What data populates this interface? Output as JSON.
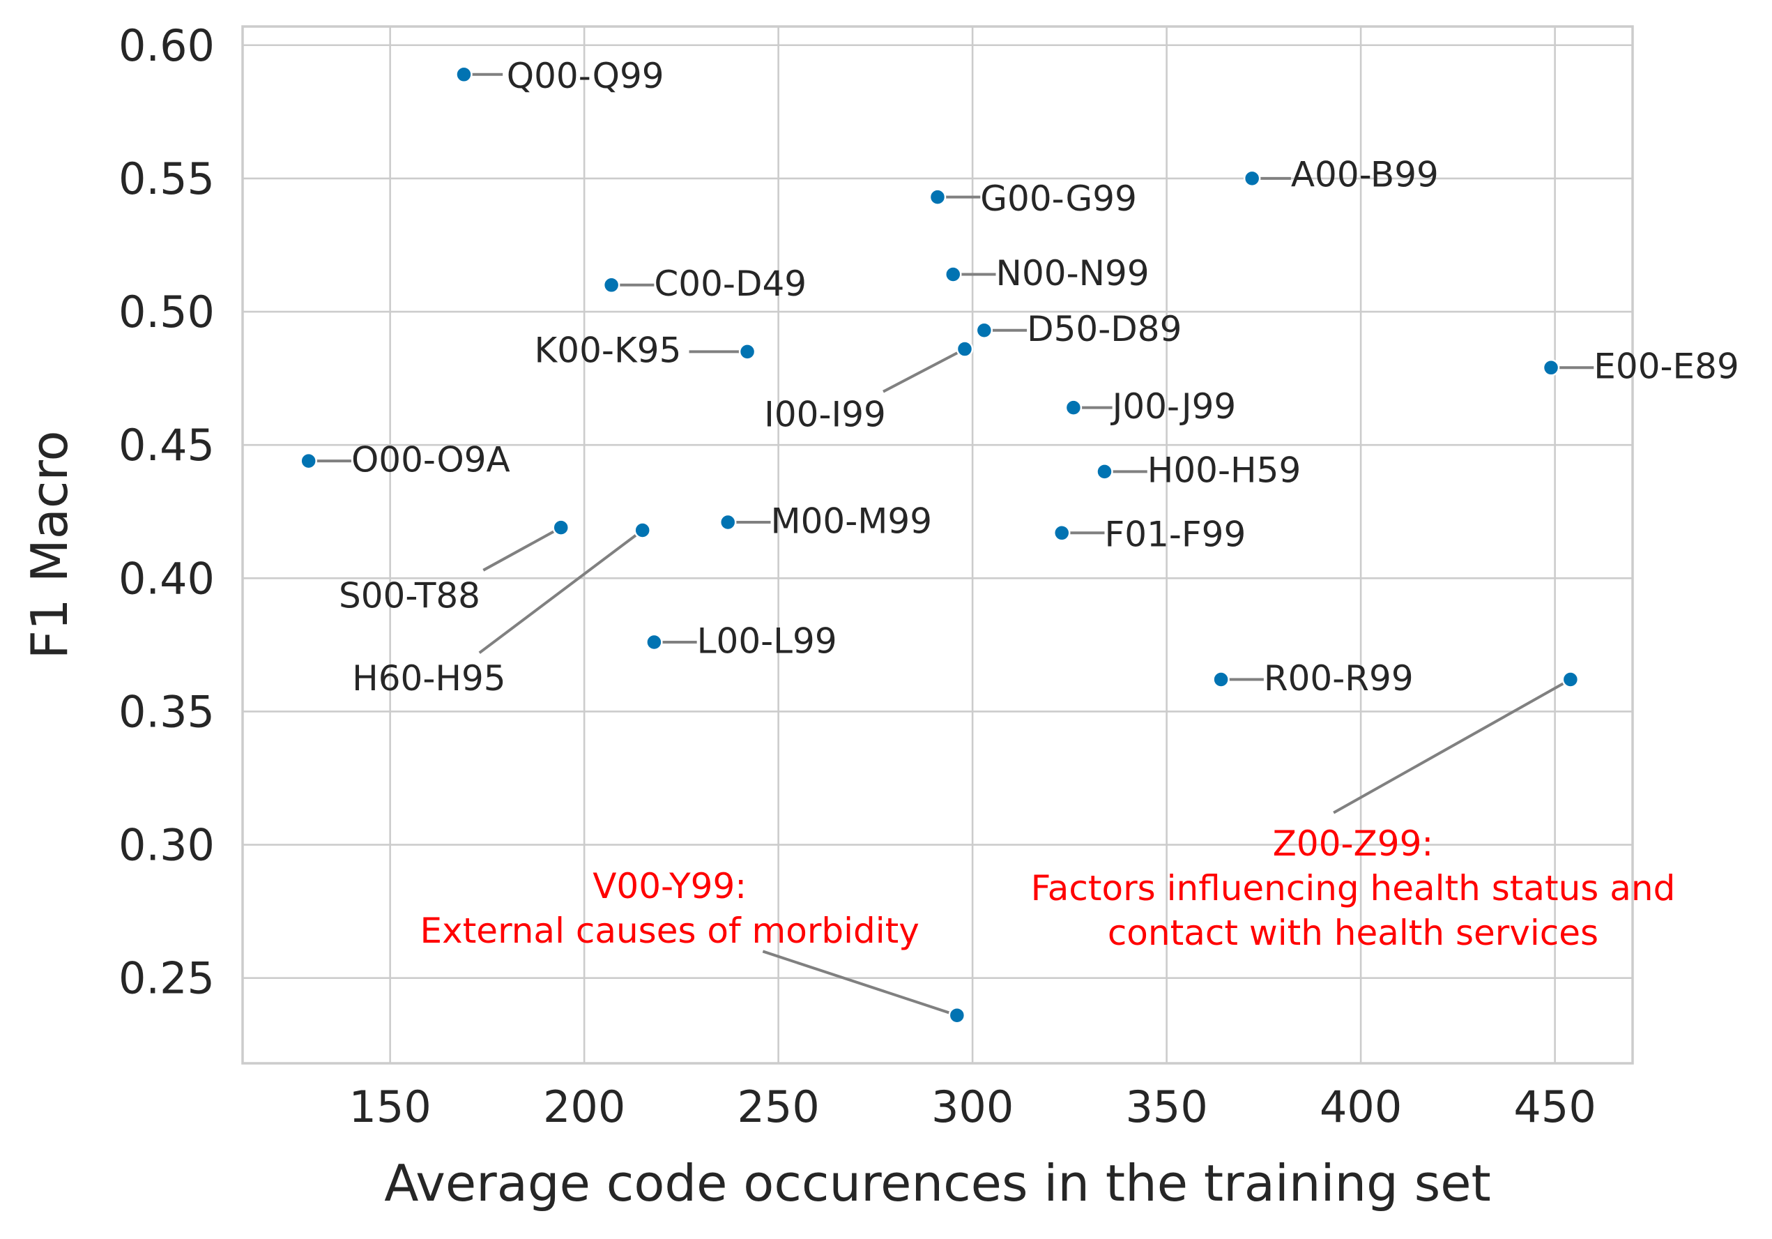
{
  "chart_data": {
    "type": "scatter",
    "xlabel": "Average code occurences in the training set",
    "ylabel": "F1 Macro",
    "xlim": [
      112,
      470
    ],
    "ylim": [
      0.218,
      0.607
    ],
    "xticks": [
      150,
      200,
      250,
      300,
      350,
      400,
      450
    ],
    "yticks": [
      0.25,
      0.3,
      0.35,
      0.4,
      0.45,
      0.5,
      0.55,
      0.6
    ],
    "xtick_labels": [
      "150",
      "200",
      "250",
      "300",
      "350",
      "400",
      "450"
    ],
    "ytick_labels": [
      "0.25",
      "0.30",
      "0.35",
      "0.40",
      "0.45",
      "0.50",
      "0.55",
      "0.60"
    ],
    "grid": true,
    "legend": "none",
    "point_color": "#0173b2",
    "highlight_color": "#ff0000",
    "points": [
      {
        "label": "Q00-Q99",
        "x": 169,
        "y": 0.589,
        "lx": 180,
        "ly": 0.584,
        "anchor": "start",
        "leader_x": 179,
        "leader_y": 0.589
      },
      {
        "label": "A00-B99",
        "x": 372,
        "y": 0.55,
        "lx": 382,
        "ly": 0.547,
        "anchor": "start",
        "leader_x": 382,
        "leader_y": 0.55
      },
      {
        "label": "G00-G99",
        "x": 291,
        "y": 0.543,
        "lx": 302,
        "ly": 0.538,
        "anchor": "start",
        "leader_x": 302,
        "leader_y": 0.543
      },
      {
        "label": "C00-D49",
        "x": 207,
        "y": 0.51,
        "lx": 218,
        "ly": 0.506,
        "anchor": "start",
        "leader_x": 218,
        "leader_y": 0.51
      },
      {
        "label": "N00-N99",
        "x": 295,
        "y": 0.514,
        "lx": 306,
        "ly": 0.51,
        "anchor": "start",
        "leader_x": 306,
        "leader_y": 0.514
      },
      {
        "label": "D50-D89",
        "x": 303,
        "y": 0.493,
        "lx": 314,
        "ly": 0.489,
        "anchor": "start",
        "leader_x": 314,
        "leader_y": 0.493
      },
      {
        "label": "K00-K95",
        "x": 242,
        "y": 0.485,
        "lx": 225,
        "ly": 0.481,
        "anchor": "end",
        "leader_x": 227,
        "leader_y": 0.485
      },
      {
        "label": "E00-E89",
        "x": 449,
        "y": 0.479,
        "lx": 460,
        "ly": 0.475,
        "anchor": "start",
        "leader_x": 460,
        "leader_y": 0.479
      },
      {
        "label": "I00-I99",
        "x": 298,
        "y": 0.486,
        "lx": 262,
        "ly": 0.457,
        "anchor": "middle",
        "leader_x": 277,
        "leader_y": 0.47
      },
      {
        "label": "J00-J99",
        "x": 326,
        "y": 0.464,
        "lx": 336,
        "ly": 0.46,
        "anchor": "start",
        "leader_x": 336,
        "leader_y": 0.464
      },
      {
        "label": "O00-O9A",
        "x": 129,
        "y": 0.444,
        "lx": 140,
        "ly": 0.44,
        "anchor": "start",
        "leader_x": 140,
        "leader_y": 0.444
      },
      {
        "label": "H00-H59",
        "x": 334,
        "y": 0.44,
        "lx": 345,
        "ly": 0.436,
        "anchor": "start",
        "leader_x": 345,
        "leader_y": 0.44
      },
      {
        "label": "M00-M99",
        "x": 237,
        "y": 0.421,
        "lx": 248,
        "ly": 0.417,
        "anchor": "start",
        "leader_x": 248,
        "leader_y": 0.421
      },
      {
        "label": "F01-F99",
        "x": 323,
        "y": 0.417,
        "lx": 334,
        "ly": 0.412,
        "anchor": "start",
        "leader_x": 334,
        "leader_y": 0.417
      },
      {
        "label": "S00-T88",
        "x": 194,
        "y": 0.419,
        "lx": 155,
        "ly": 0.389,
        "anchor": "middle",
        "leader_x": 174,
        "leader_y": 0.403
      },
      {
        "label": "H60-H95",
        "x": 215,
        "y": 0.418,
        "lx": 160,
        "ly": 0.358,
        "anchor": "middle",
        "leader_x": 173,
        "leader_y": 0.372
      },
      {
        "label": "L00-L99",
        "x": 218,
        "y": 0.376,
        "lx": 229,
        "ly": 0.372,
        "anchor": "start",
        "leader_x": 229,
        "leader_y": 0.376
      },
      {
        "label": "R00-R99",
        "x": 364,
        "y": 0.362,
        "lx": 375,
        "ly": 0.358,
        "anchor": "start",
        "leader_x": 375,
        "leader_y": 0.362
      },
      {
        "label": "Z00-Z99:",
        "label_lines": [
          "Z00-Z99:",
          "Factors influencing health status and",
          "contact with health services"
        ],
        "x": 454,
        "y": 0.362,
        "lx": 398,
        "ly": 0.296,
        "anchor": "middle",
        "leader_x": 393,
        "leader_y": 0.312,
        "highlight": true
      },
      {
        "label": "V00-Y99:",
        "label_lines": [
          "V00-Y99:",
          "External causes of morbidity"
        ],
        "x": 296,
        "y": 0.236,
        "lx": 222,
        "ly": 0.28,
        "anchor": "middle",
        "leader_x": 246,
        "leader_y": 0.26,
        "highlight": true
      }
    ]
  }
}
